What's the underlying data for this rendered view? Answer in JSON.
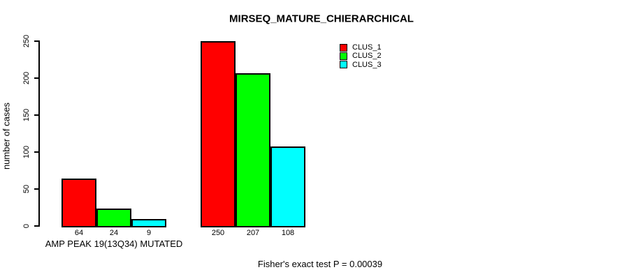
{
  "chart_data": {
    "type": "bar",
    "title": "MIRSEQ_MATURE_CHIERARCHICAL",
    "ylabel": "number of cases",
    "xlabel": "",
    "ylim": [
      0,
      250
    ],
    "yticks": [
      0,
      50,
      100,
      150,
      200,
      250
    ],
    "grid": false,
    "legend_position": "top-right",
    "categories": [
      "AMP PEAK 19(13Q34) MUTATED",
      ""
    ],
    "series": [
      {
        "name": "CLUS_1",
        "color": "#FF0000",
        "values": [
          64,
          250
        ]
      },
      {
        "name": "CLUS_2",
        "color": "#00FF00",
        "values": [
          24,
          207
        ]
      },
      {
        "name": "CLUS_3",
        "color": "#00FFFF",
        "values": [
          9,
          108
        ]
      }
    ],
    "bar_value_labels": [
      [
        "64",
        "24",
        "9"
      ],
      [
        "250",
        "207",
        "108"
      ]
    ],
    "annotation": "Fisher's exact test P = 0.00039"
  },
  "colors": {
    "background": "#FFFFFF",
    "axis": "#000000",
    "bar_border": "#000000",
    "text": "#000000"
  }
}
